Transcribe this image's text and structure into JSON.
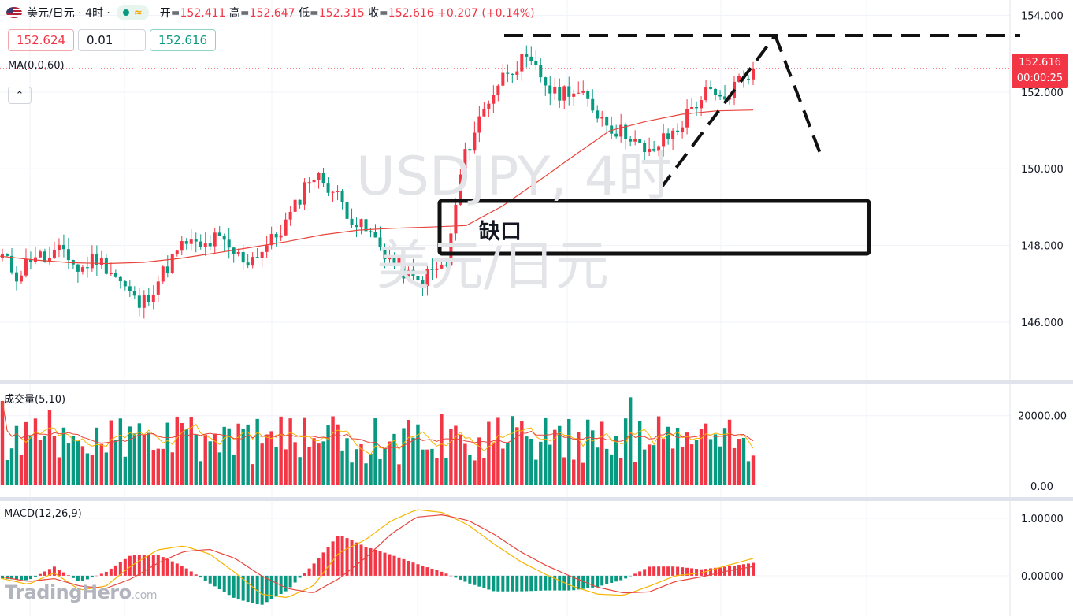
{
  "header": {
    "symbol_title": "美元/日元 · 4时 ·",
    "status_wave": "≈",
    "open_label": "开=",
    "open_value": "152.411",
    "high_label": "高=",
    "high_value": "152.647",
    "low_label": "低=",
    "low_value": "152.315",
    "close_label": "收=",
    "close_value": "152.616",
    "change": "+0.207 (+0.14%)"
  },
  "trade_panel": {
    "sell_price": "152.624",
    "quantity": "0.01",
    "buy_price": "152.616"
  },
  "indicators": {
    "ma_label": "MA(0,0,60)",
    "volume_label": "成交量(5,10)",
    "macd_label": "MACD(12,26,9)",
    "collapse_icon": "chevron-up-icon"
  },
  "current_price": {
    "price": "152.616",
    "countdown": "00:00:25",
    "color": "#f23645"
  },
  "watermark": {
    "line1": "USDJPY, 4时",
    "line2": "美元/日元"
  },
  "annotation": {
    "gap_label": "缺口"
  },
  "brand": {
    "name": "TradingHero",
    "suffix": ".com"
  },
  "colors": {
    "up": "#f23645",
    "down": "#089981",
    "ma": "#e8453c",
    "signal": "#f7b500"
  },
  "chart_data": {
    "type": "candlestick",
    "price_axis": {
      "ticks": [
        "154.000",
        "152.000",
        "150.000",
        "148.000",
        "146.000"
      ],
      "range": [
        144.5,
        154.4
      ]
    },
    "volume_axis": {
      "ticks": [
        "20000.00",
        "0.00"
      ],
      "range": [
        0,
        29000
      ]
    },
    "macd_axis": {
      "ticks": [
        "1.00000",
        "0.00000"
      ],
      "range": [
        -0.7,
        1.3
      ]
    },
    "close_path": [
      147.7,
      147.2,
      147.8,
      147.6,
      147.9,
      147.3,
      147.7,
      147.4,
      146.9,
      146.4,
      147.0,
      147.6,
      148.1,
      147.9,
      148.2,
      147.8,
      147.6,
      147.9,
      148.3,
      148.9,
      149.8,
      149.7,
      149.2,
      148.6,
      148.3,
      147.8,
      147.4,
      147.0,
      147.3,
      147.5,
      150.1,
      151.2,
      152.0,
      152.6,
      152.8,
      152.5,
      151.9,
      152.1,
      151.8,
      151.4,
      151.0,
      150.9,
      150.3,
      150.7,
      151.0,
      151.6,
      152.0,
      151.7,
      152.3,
      152.616
    ],
    "ma_path": [
      147.72,
      147.62,
      147.55,
      147.53,
      147.56,
      147.66,
      147.8,
      147.95,
      148.1,
      148.28,
      148.4,
      148.45,
      148.48,
      148.52,
      149.02,
      149.67,
      150.34,
      150.99,
      151.23,
      151.42,
      151.51,
      151.53
    ],
    "macd_line_path": [
      -0.05,
      -0.15,
      0.05,
      -0.25,
      -0.18,
      0.18,
      0.45,
      0.52,
      0.38,
      0.05,
      -0.32,
      -0.38,
      -0.18,
      0.4,
      0.62,
      0.95,
      1.15,
      1.1,
      0.88,
      0.55,
      0.25,
      0.02,
      -0.18,
      -0.32,
      -0.34,
      -0.18,
      0.0,
      0.05,
      0.18,
      0.3
    ],
    "signal_line_path": [
      -0.02,
      -0.1,
      -0.05,
      -0.18,
      -0.22,
      -0.05,
      0.22,
      0.42,
      0.46,
      0.3,
      0.0,
      -0.22,
      -0.3,
      -0.05,
      0.3,
      0.72,
      1.02,
      1.06,
      0.96,
      0.72,
      0.42,
      0.18,
      -0.02,
      -0.2,
      -0.3,
      -0.28,
      -0.1,
      -0.02,
      0.08,
      0.16
    ]
  }
}
